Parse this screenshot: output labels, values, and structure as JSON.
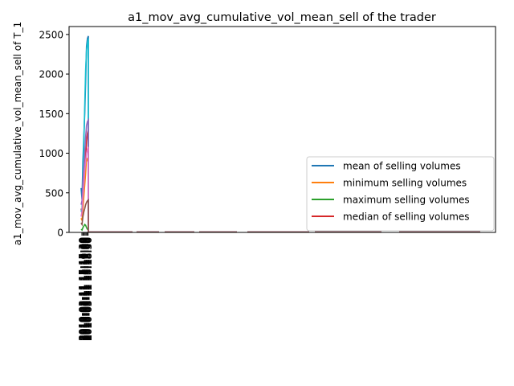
{
  "chart_data": {
    "type": "line",
    "title": "a1_mov_avg_cumulative_vol_mean_sell of the trader",
    "ylabel": "a1_mov_avg_cumulative_vol_mean_sell of T_1",
    "xlabel": "",
    "ylim": [
      0,
      2600
    ],
    "yticks": [
      0,
      500,
      1000,
      1500,
      2000,
      2500
    ],
    "grid": false,
    "legend_position": "center-right",
    "x_tick_labels": [
      "2010-03-11 15:15:30",
      "2010-03-11 15:16:00",
      "2010-03-11 15:16:30",
      "2010-03-11 15:17:00",
      "2010-03-11 15:17:30",
      "2010-03-11 15:18:00",
      "2010-03-11 15:18:30"
    ],
    "x": [
      0,
      1,
      2,
      3,
      4,
      5,
      6,
      7,
      8,
      9,
      10,
      11,
      12,
      13,
      14,
      15,
      16,
      17,
      18,
      19,
      20,
      21,
      22,
      23,
      24,
      25,
      26,
      27,
      28,
      29,
      30
    ],
    "series": [
      {
        "name": "mean of selling volumes",
        "color": "#1f77b4",
        "values": [
          560,
          420,
          900,
          1200,
          1500,
          1900,
          2350,
          2450,
          2480,
          0,
          0,
          0,
          0,
          0,
          0,
          0,
          0,
          0,
          0,
          0,
          0,
          0,
          0,
          0,
          0,
          0,
          0,
          0,
          0,
          0,
          0
        ]
      },
      {
        "name": "minimum selling volumes",
        "color": "#ff7f0e",
        "values": [
          180,
          150,
          300,
          450,
          600,
          750,
          940,
          900,
          960,
          0,
          0,
          0,
          0,
          0,
          0,
          0,
          0,
          0,
          0,
          0,
          0,
          0,
          0,
          0,
          0,
          0,
          0,
          0,
          0,
          0,
          0
        ]
      },
      {
        "name": "maximum selling volumes",
        "color": "#2ca02c",
        "values": [
          40,
          30,
          60,
          80,
          100,
          90,
          60,
          40,
          30,
          0,
          0,
          0,
          0,
          0,
          0,
          0,
          0,
          0,
          0,
          0,
          0,
          0,
          0,
          0,
          0,
          0,
          0,
          0,
          0,
          0,
          0
        ]
      },
      {
        "name": "median of selling volumes",
        "color": "#d62728",
        "values": [
          300,
          250,
          500,
          650,
          800,
          950,
          1150,
          1250,
          1300,
          0,
          0,
          0,
          0,
          0,
          0,
          0,
          0,
          0,
          0,
          0,
          0,
          0,
          0,
          0,
          0,
          0,
          0,
          0,
          0,
          0,
          0
        ]
      }
    ],
    "extra_lines": [
      {
        "color": "#17becf",
        "values": [
          260,
          300,
          700,
          1100,
          1600,
          2050,
          2300,
          2400,
          2450,
          0,
          0,
          0,
          0,
          0,
          0,
          0,
          0,
          0,
          0,
          0,
          0,
          0,
          0,
          0,
          0,
          0,
          0,
          0,
          0,
          0,
          0
        ]
      },
      {
        "color": "#9467bd",
        "values": [
          350,
          400,
          650,
          800,
          1000,
          1200,
          1350,
          1400,
          1420,
          0,
          0,
          0,
          0,
          0,
          0,
          0,
          0,
          0,
          0,
          0,
          0,
          0,
          0,
          0,
          0,
          0,
          0,
          0,
          0,
          0,
          0
        ]
      },
      {
        "color": "#e377c2",
        "values": [
          200,
          260,
          450,
          600,
          780,
          900,
          1000,
          1050,
          1080,
          0,
          0,
          0,
          0,
          0,
          0,
          0,
          0,
          0,
          0,
          0,
          0,
          0,
          0,
          0,
          0,
          0,
          0,
          0,
          0,
          0,
          0
        ]
      },
      {
        "color": "#8c564b",
        "values": [
          120,
          100,
          200,
          260,
          300,
          350,
          380,
          400,
          410,
          0,
          0,
          0,
          0,
          0,
          0,
          0,
          0,
          0,
          0,
          0,
          0,
          0,
          0,
          0,
          0,
          0,
          0,
          0,
          0,
          0,
          0
        ]
      }
    ]
  }
}
